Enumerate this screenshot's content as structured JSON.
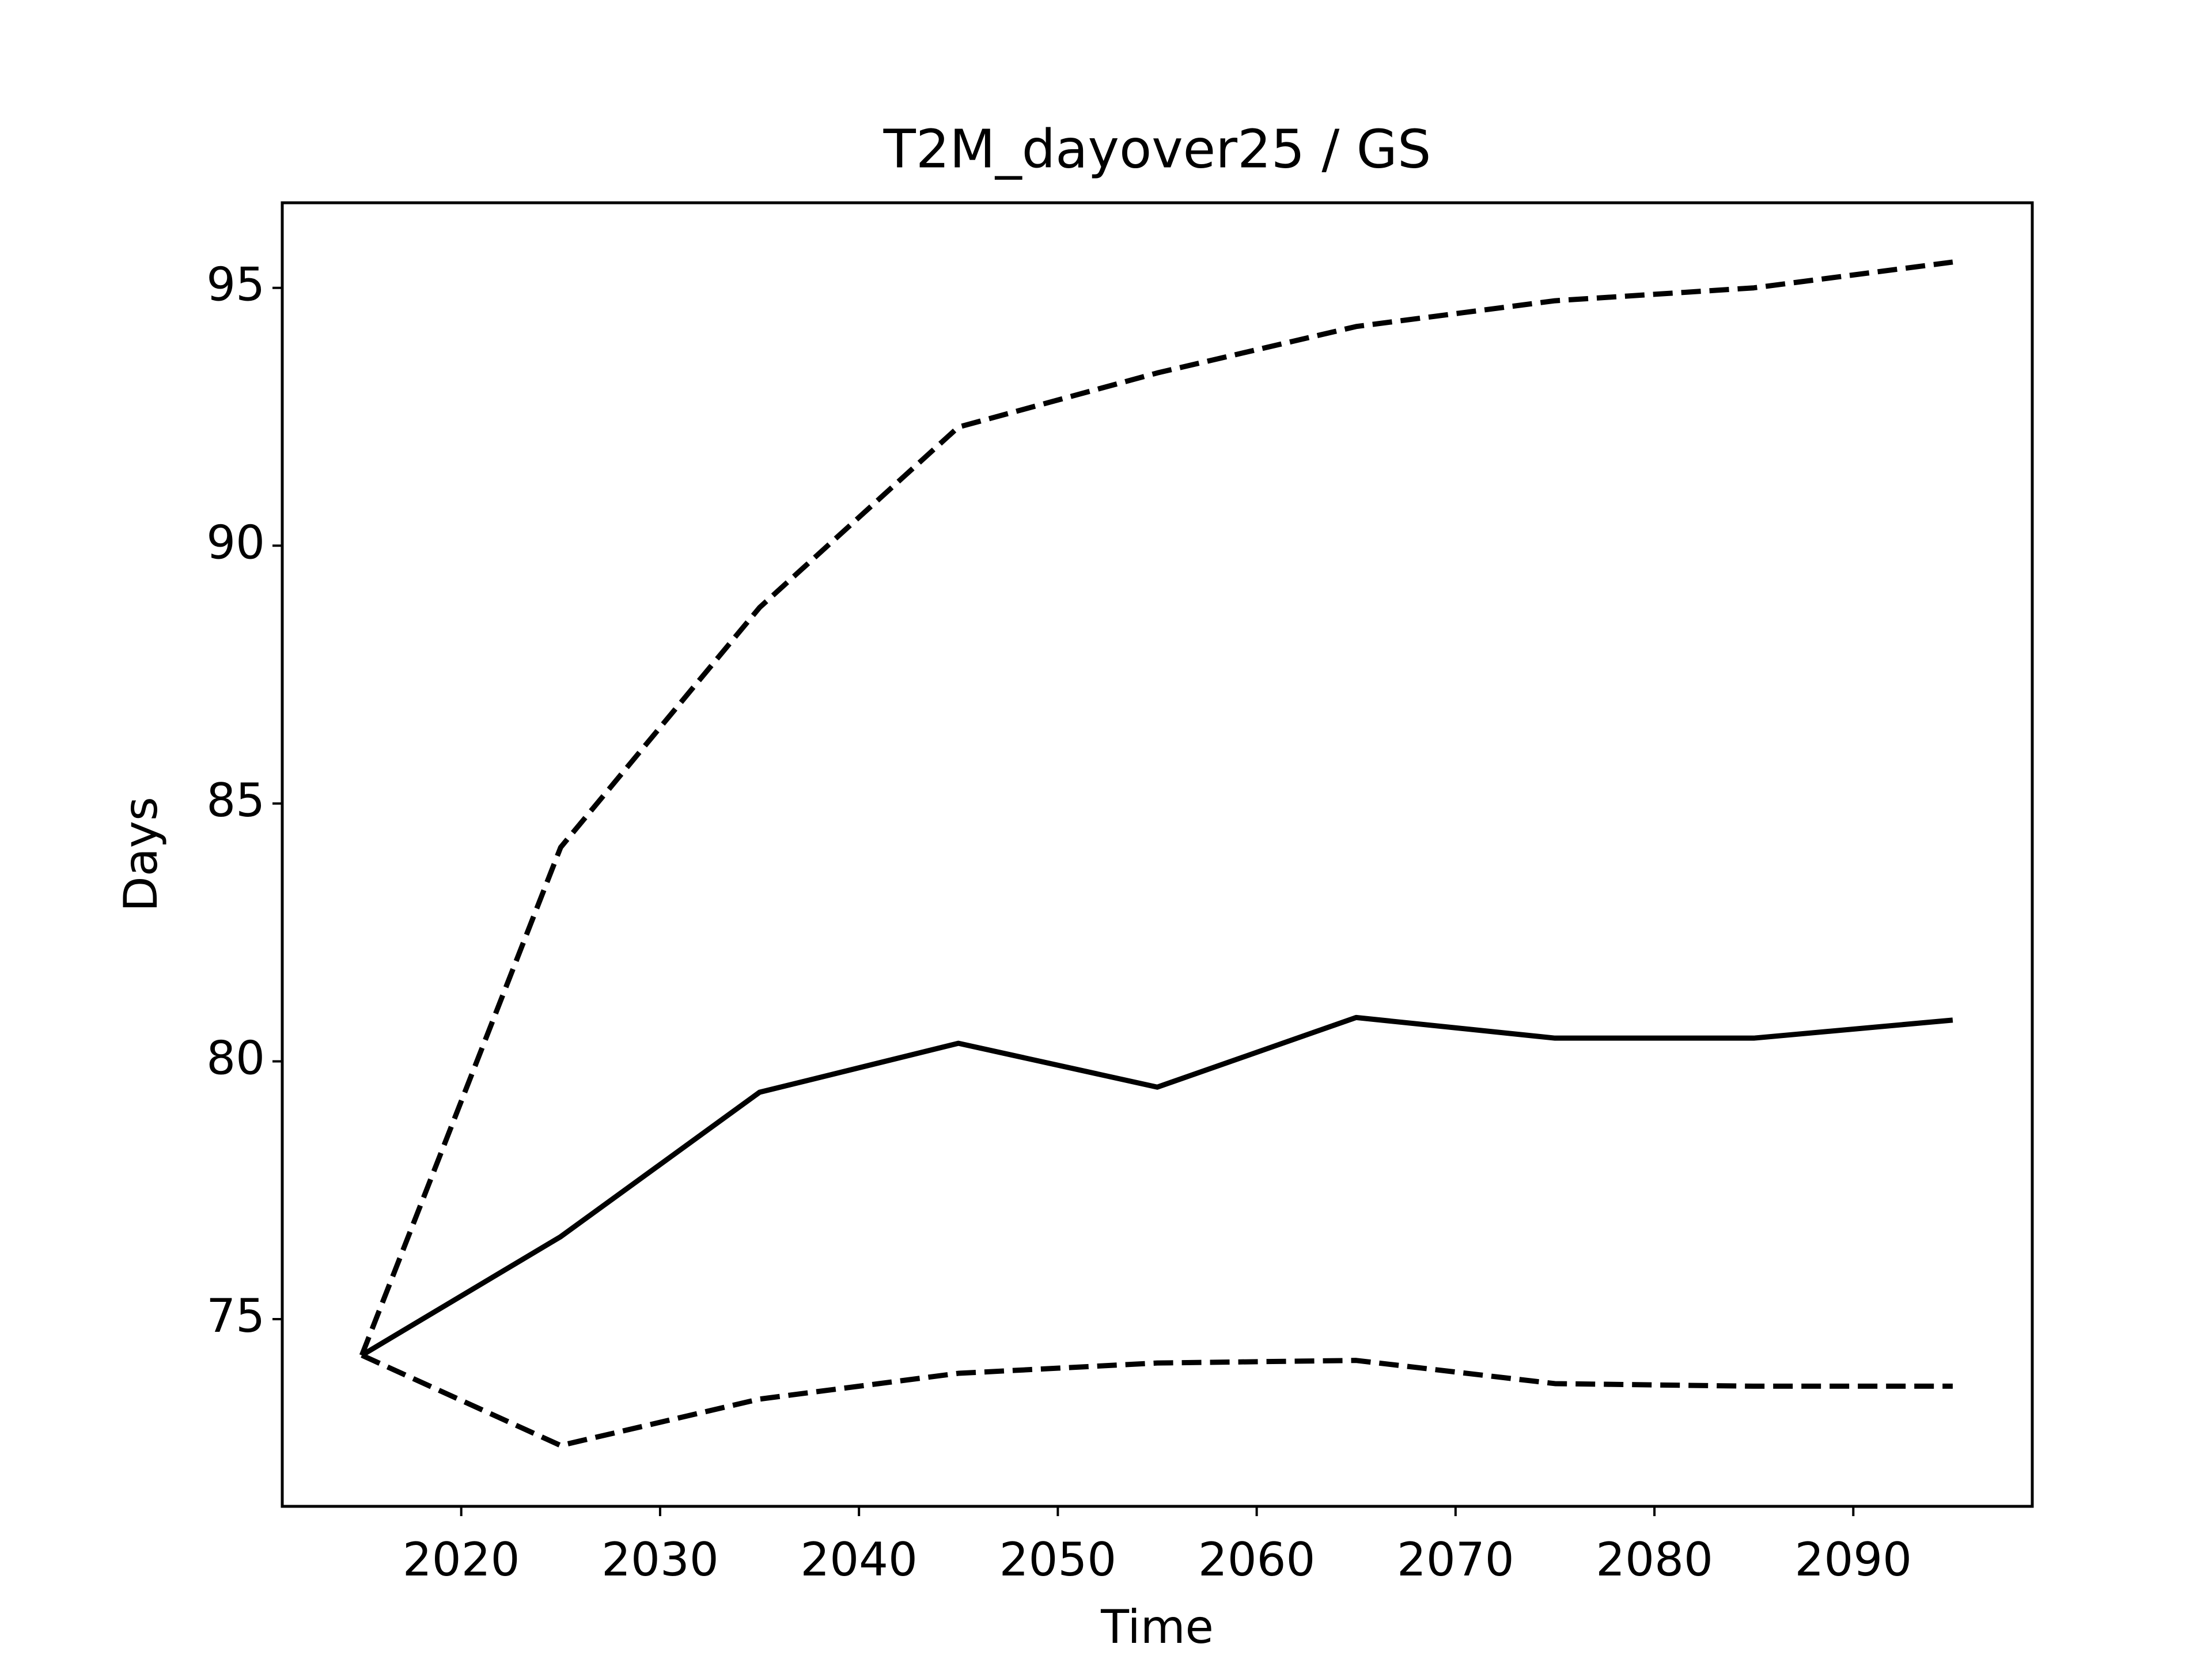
{
  "chart_data": {
    "type": "line",
    "title": "T2M_dayover25 / GS",
    "xlabel": "Time",
    "ylabel": "Days",
    "x": [
      2015,
      2025,
      2035,
      2045,
      2055,
      2065,
      2075,
      2085,
      2095
    ],
    "series": [
      {
        "color": "#000000",
        "dash": false,
        "values": [
          74.3,
          76.6,
          79.4,
          80.35,
          79.5,
          80.85,
          80.45,
          80.45,
          80.8
        ]
      },
      {
        "color": "#000000",
        "dash": true,
        "values": [
          74.3,
          84.15,
          88.8,
          92.3,
          93.35,
          94.25,
          94.75,
          95.0,
          95.5
        ]
      },
      {
        "color": "#000000",
        "dash": true,
        "values": [
          74.3,
          72.55,
          73.45,
          73.95,
          74.15,
          74.2,
          73.75,
          73.7,
          73.7
        ]
      }
    ],
    "xlim": [
      2011,
      2099
    ],
    "xticks": [
      2020,
      2030,
      2040,
      2050,
      2060,
      2070,
      2080,
      2090
    ],
    "ylim": [
      71.37,
      96.65
    ],
    "yticks": [
      75,
      80,
      85,
      90,
      95
    ],
    "grid": false
  }
}
